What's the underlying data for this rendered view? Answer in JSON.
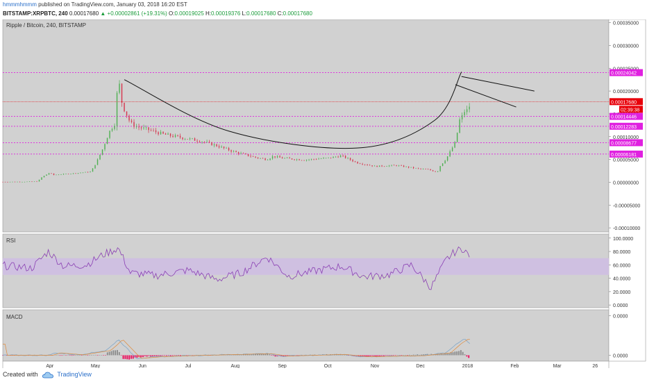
{
  "header": {
    "author": "hmmmhmmm",
    "published_text": " published on TradingView.com, January 03, 2018 16:20 EST",
    "symbol": "BITSTAMP:XRPBTC, 240",
    "last": "0.00017680",
    "change": "▲ +0.00002861 (+19.31%)",
    "o_label": "O:",
    "o_value": "0.00019025",
    "h_label": "H:",
    "h_value": "0.00019376",
    "l_label": "L:",
    "l_value": "0.00017680",
    "c_label": "C:",
    "c_value": "0.00017680"
  },
  "footer": {
    "created_with": "Created with",
    "brand": "TradingView",
    "logo_icon": "tradingview-cloud-icon"
  },
  "colors": {
    "pane_bg": "#d1d1d1",
    "rsi_band": "#cfc0e1",
    "hline": "#e020e0",
    "last_price": "#e8000a",
    "rsi_line": "#8a3fb3",
    "hist_up": "#8a8a8a",
    "hist_down": "#ee0055",
    "candle_up": "#4caf50",
    "candle_down": "#d6334c",
    "drawing": "#111111"
  },
  "chart_data": [
    {
      "type": "candlestick",
      "title": "Ripple / Bitcoin, 240, BITSTAMP",
      "x_labels": [
        "Apr",
        "May",
        "Jun",
        "Jul",
        "Aug",
        "Sep",
        "Oct",
        "Nov",
        "Dec",
        "2018",
        "Feb",
        "Mar",
        "26"
      ],
      "y_ticks": [
        0.00035,
        0.0003,
        0.00025,
        0.0002,
        0.00015,
        0.0001,
        5e-05,
        0.0,
        -5e-05,
        -0.0001
      ],
      "y_tick_labels": [
        "0.00035000",
        "0.00030000",
        "0.00025000",
        "0.00020000",
        "0.00015000",
        "0.00010000",
        "0.00005000",
        "0.00000000",
        "-0.00005000",
        "-0.00010000"
      ],
      "ylim": [
        -0.000109,
        0.000357
      ],
      "horizontal_levels": [
        {
          "value": 0.00024042,
          "label": "0.00024042"
        },
        {
          "value": 0.00014446,
          "label": "0.00014446"
        },
        {
          "value": 0.00012283,
          "label": "0.00012283"
        },
        {
          "value": 8.677e-05,
          "label": "0.00008677"
        },
        {
          "value": 6.181e-05,
          "label": "0.00006181"
        }
      ],
      "last_price": {
        "value": 0.0001768,
        "label": "0.00017680",
        "countdown": "02:39:38"
      },
      "price_path": [
        [
          "2017-03-01",
          8e-07
        ],
        [
          "2017-03-15",
          1e-06
        ],
        [
          "2017-03-24",
          2e-06
        ],
        [
          "2017-03-27",
          1.2e-05
        ],
        [
          "2017-04-01",
          2.1e-05
        ],
        [
          "2017-04-03",
          1.6e-05
        ],
        [
          "2017-04-15",
          1.9e-05
        ],
        [
          "2017-04-28",
          2.3e-05
        ],
        [
          "2017-05-02",
          4.6e-05
        ],
        [
          "2017-05-06",
          7.5e-05
        ],
        [
          "2017-05-10",
          0.00011
        ],
        [
          "2017-05-14",
          0.00013
        ],
        [
          "2017-05-16",
          0.000235
        ],
        [
          "2017-05-18",
          0.00018
        ],
        [
          "2017-05-20",
          0.00016
        ],
        [
          "2017-05-24",
          0.00013
        ],
        [
          "2017-05-28",
          0.000122
        ],
        [
          "2017-06-05",
          0.000115
        ],
        [
          "2017-06-15",
          0.000105
        ],
        [
          "2017-06-30",
          9.6e-05
        ],
        [
          "2017-07-10",
          9e-05
        ],
        [
          "2017-07-20",
          8e-05
        ],
        [
          "2017-08-01",
          6.6e-05
        ],
        [
          "2017-08-15",
          5.4e-05
        ],
        [
          "2017-08-22",
          5e-05
        ],
        [
          "2017-08-26",
          5.7e-05
        ],
        [
          "2017-09-01",
          5.3e-05
        ],
        [
          "2017-09-15",
          4.9e-05
        ],
        [
          "2017-10-01",
          5.3e-05
        ],
        [
          "2017-10-10",
          5.8e-05
        ],
        [
          "2017-10-20",
          4.3e-05
        ],
        [
          "2017-11-01",
          3.5e-05
        ],
        [
          "2017-11-15",
          3.7e-05
        ],
        [
          "2017-12-01",
          2.9e-05
        ],
        [
          "2017-12-06",
          2.8e-05
        ],
        [
          "2017-12-12",
          2.2e-05
        ],
        [
          "2017-12-14",
          3.6e-05
        ],
        [
          "2017-12-18",
          5.2e-05
        ],
        [
          "2017-12-21",
          7e-05
        ],
        [
          "2017-12-24",
          8.8e-05
        ],
        [
          "2017-12-27",
          0.00014
        ],
        [
          "2017-12-29",
          0.000146
        ],
        [
          "2017-12-31",
          0.000165
        ],
        [
          "2018-01-01",
          0.000152
        ],
        [
          "2018-01-03",
          0.0001768
        ]
      ],
      "drawings": [
        {
          "kind": "curve",
          "points": [
            [
              "2017-05-20",
              0.000225
            ],
            [
              "2017-07-28",
              0.000112
            ],
            [
              "2017-10-20",
              7.5e-05
            ],
            [
              "2017-12-10",
              0.000135
            ],
            [
              "2017-12-28",
              0.000242
            ]
          ]
        },
        {
          "kind": "trendline",
          "points": [
            [
              "2017-12-28",
              0.000232
            ],
            [
              "2018-02-14",
              0.0002
            ]
          ]
        },
        {
          "kind": "trendline",
          "points": [
            [
              "2017-12-24",
              0.000214
            ],
            [
              "2018-02-02",
              0.000165
            ]
          ]
        }
      ]
    },
    {
      "type": "line",
      "title": "RSI",
      "y_ticks": [
        100,
        80,
        60,
        40,
        20,
        0
      ],
      "y_tick_labels": [
        "100.0000",
        "80.0000",
        "60.0000",
        "40.0000",
        "20.0000",
        "0.0000"
      ],
      "ylim": [
        -4,
        106
      ],
      "band": [
        45,
        70
      ],
      "path": [
        [
          "2017-03-01",
          59
        ],
        [
          "2017-03-20",
          55
        ],
        [
          "2017-03-31",
          80
        ],
        [
          "2017-04-10",
          58
        ],
        [
          "2017-04-25",
          60
        ],
        [
          "2017-05-06",
          75
        ],
        [
          "2017-05-16",
          85
        ],
        [
          "2017-05-24",
          48
        ],
        [
          "2017-06-10",
          44
        ],
        [
          "2017-07-01",
          52
        ],
        [
          "2017-07-20",
          38
        ],
        [
          "2017-08-05",
          48
        ],
        [
          "2017-08-22",
          72
        ],
        [
          "2017-09-05",
          43
        ],
        [
          "2017-09-25",
          52
        ],
        [
          "2017-10-10",
          58
        ],
        [
          "2017-10-25",
          42
        ],
        [
          "2017-11-10",
          45
        ],
        [
          "2017-11-25",
          60
        ],
        [
          "2017-12-08",
          26
        ],
        [
          "2017-12-18",
          68
        ],
        [
          "2017-12-24",
          80
        ],
        [
          "2017-12-30",
          85
        ],
        [
          "2018-01-03",
          66
        ]
      ]
    },
    {
      "type": "histogram",
      "title": "MACD",
      "y_ticks": [
        0.0,
        -0.0001
      ],
      "y_tick_labels": [
        "0.0000",
        "0.0000"
      ],
      "ylim": [
        -0.000115,
        1.5e-05
      ],
      "zero": -0.0001,
      "macd_path": [
        [
          "2017-03-01",
          -0.0001
        ],
        [
          "2017-03-31",
          -0.0001
        ],
        [
          "2017-04-05",
          -9.4e-05
        ],
        [
          "2017-04-20",
          -9.9e-05
        ],
        [
          "2017-05-08",
          -8.8e-05
        ],
        [
          "2017-05-12",
          -7.5e-05
        ],
        [
          "2017-05-16",
          -6e-05
        ],
        [
          "2017-05-22",
          -8.4e-05
        ],
        [
          "2017-05-28",
          -0.000108
        ],
        [
          "2017-06-10",
          -0.000104
        ],
        [
          "2017-07-01",
          -0.000101
        ],
        [
          "2017-08-22",
          -9.6e-05
        ],
        [
          "2017-09-01",
          -0.000102
        ],
        [
          "2017-10-10",
          -9.8e-05
        ],
        [
          "2017-10-25",
          -0.000104
        ],
        [
          "2017-12-01",
          -0.000101
        ],
        [
          "2017-12-18",
          -9.4e-05
        ],
        [
          "2017-12-25",
          -7e-05
        ],
        [
          "2017-12-30",
          -5.8e-05
        ],
        [
          "2018-01-03",
          -7.2e-05
        ]
      ],
      "hist": [
        [
          "2017-05-08",
          6e-06
        ],
        [
          "2017-05-12",
          1.1e-05
        ],
        [
          "2017-05-16",
          1.4e-05
        ],
        [
          "2017-05-19",
          -8e-06
        ],
        [
          "2017-05-23",
          -1.2e-05
        ],
        [
          "2017-05-27",
          -6e-06
        ],
        [
          "2017-06-03",
          -3e-06
        ],
        [
          "2017-08-22",
          4e-06
        ],
        [
          "2017-08-28",
          -3e-06
        ],
        [
          "2017-10-10",
          3e-06
        ],
        [
          "2017-10-22",
          -4e-06
        ],
        [
          "2017-12-18",
          4e-06
        ],
        [
          "2017-12-24",
          1e-05
        ],
        [
          "2017-12-28",
          1.2e-05
        ],
        [
          "2018-01-01",
          -6e-06
        ],
        [
          "2018-01-03",
          -9e-06
        ]
      ]
    }
  ]
}
